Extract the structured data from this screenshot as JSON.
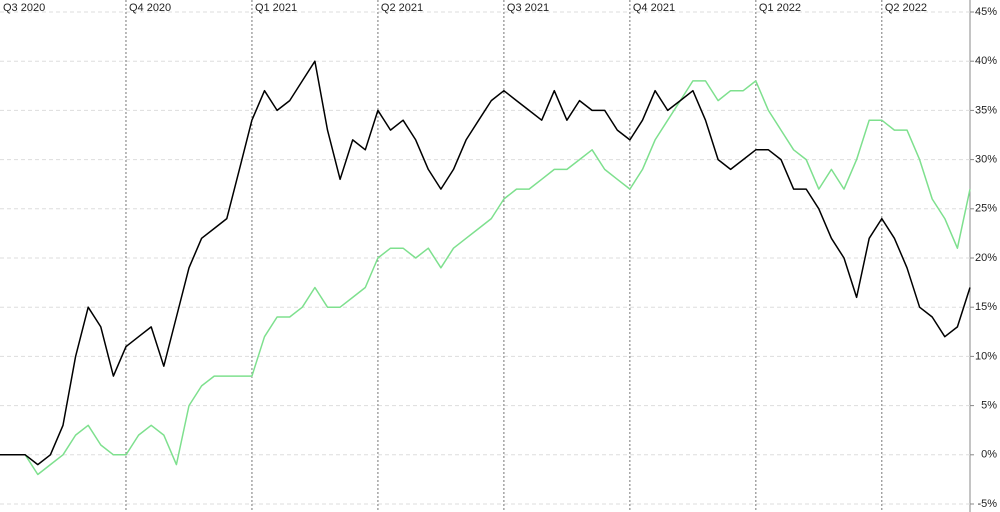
{
  "chart_data": {
    "type": "line",
    "categories": [
      "Q3 2020",
      null,
      null,
      null,
      null,
      null,
      null,
      null,
      null,
      null,
      "Q4 2020",
      null,
      null,
      null,
      null,
      null,
      null,
      null,
      null,
      null,
      "Q1 2021",
      null,
      null,
      null,
      null,
      null,
      null,
      null,
      null,
      null,
      "Q2 2021",
      null,
      null,
      null,
      null,
      null,
      null,
      null,
      null,
      null,
      "Q3 2021",
      null,
      null,
      null,
      null,
      null,
      null,
      null,
      null,
      null,
      "Q4 2021",
      null,
      null,
      null,
      null,
      null,
      null,
      null,
      null,
      null,
      "Q1 2022",
      null,
      null,
      null,
      null,
      null,
      null,
      null,
      null,
      null,
      "Q2 2022",
      null,
      null,
      null,
      null,
      null,
      null,
      null
    ],
    "series": [
      {
        "color": "#000000",
        "values": [
          0,
          0,
          0,
          -1,
          0,
          3,
          10,
          15,
          13,
          8,
          11,
          12,
          13,
          9,
          14,
          19,
          22,
          23,
          24,
          29,
          34,
          37,
          35,
          36,
          38,
          40,
          33,
          28,
          32,
          31,
          35,
          33,
          34,
          32,
          29,
          27,
          29,
          32,
          34,
          36,
          37,
          36,
          35,
          34,
          37,
          34,
          36,
          35,
          35,
          33,
          32,
          34,
          37,
          35,
          36,
          37,
          34,
          30,
          29,
          30,
          31,
          31,
          30,
          27,
          27,
          25,
          22,
          20,
          16,
          22,
          24,
          22,
          19,
          15,
          14,
          12,
          13,
          17
        ]
      },
      {
        "color": "#7ee08e",
        "values": [
          0,
          0,
          0,
          -2,
          -1,
          0,
          2,
          3,
          1,
          0,
          0,
          2,
          3,
          2,
          -1,
          5,
          7,
          8,
          8,
          8,
          8,
          12,
          14,
          14,
          15,
          17,
          15,
          15,
          16,
          17,
          20,
          21,
          21,
          20,
          21,
          19,
          21,
          22,
          23,
          24,
          26,
          27,
          27,
          28,
          29,
          29,
          30,
          31,
          29,
          28,
          27,
          29,
          32,
          34,
          36,
          38,
          38,
          36,
          37,
          37,
          38,
          35,
          33,
          31,
          30,
          27,
          29,
          27,
          30,
          34,
          34,
          33,
          33,
          30,
          26,
          24,
          21,
          27
        ]
      }
    ],
    "ylim": [
      -5,
      45
    ],
    "yticks": [
      {
        "value": -5,
        "label": "-5%"
      },
      {
        "value": 0,
        "label": "0%"
      },
      {
        "value": 5,
        "label": "5%"
      },
      {
        "value": 10,
        "label": "10%"
      },
      {
        "value": 15,
        "label": "15%"
      },
      {
        "value": 20,
        "label": "20%"
      },
      {
        "value": 25,
        "label": "25%"
      },
      {
        "value": 30,
        "label": "30%"
      },
      {
        "value": 35,
        "label": "35%"
      },
      {
        "value": 40,
        "label": "40%"
      },
      {
        "value": 45,
        "label": "45%"
      }
    ],
    "grid": true
  }
}
